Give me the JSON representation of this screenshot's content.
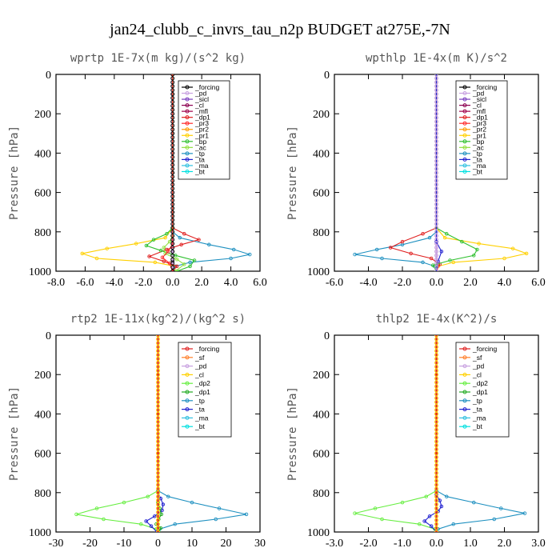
{
  "title": "jan24_clubb_c_invrs_tau_n2p  BUDGET at275E,-7N",
  "colors": {
    "_forcing": "#000000",
    "_pd": "#c8a0e0",
    "_sicl": "#7b3fc0",
    "_cl": "#8b0050",
    "_mfl": "#a0004a",
    "_dp1": "#e02020",
    "_pr3": "#ff2a2a",
    "_pr2": "#ff9a00",
    "_pr1": "#ffd000",
    "_bp": "#30c030",
    "_ac": "#90e040",
    "_tp": "#1e90c0",
    "_ta": "#2020d0",
    "_ma": "#30c0e0",
    "_bt": "#00e0e0",
    "_sf": "#ff7f2a",
    "_dp2": "#22c020",
    "forcing_red": "#e02020",
    "cl_yellow": "#ffd000",
    "dp2_light": "#66ee40",
    "dp1_green": "#22aa22"
  },
  "chart_data": [
    {
      "type": "line",
      "title": "wprtp  1E-7x(m kg)/(s^2 kg)",
      "ylabel": "Pressure [hPa]",
      "xlim": [
        -8,
        6
      ],
      "ylim": [
        0,
        1000
      ],
      "xticks": [
        "-8.0",
        "-6.0",
        "-4.0",
        "-2.0",
        "0.0",
        "2.0",
        "4.0",
        "6.0"
      ],
      "yticks": [
        "0",
        "200",
        "400",
        "600",
        "800",
        "1000"
      ],
      "legend_position": "top-right",
      "legend": [
        "_forcing",
        "_pd",
        "_sicl",
        "_cl",
        "_mfl",
        "_dp1",
        "_pr3",
        "_pr2",
        "_pr1",
        "_bp",
        "_ac",
        "_tp",
        "_ta",
        "_ma",
        "_bt"
      ],
      "series": [
        {
          "name": "_forcing",
          "color": "#000000",
          "x": [
            0,
            0,
            0,
            0,
            0,
            0,
            0,
            0,
            0,
            0,
            0,
            0
          ],
          "y": [
            0,
            100,
            200,
            300,
            400,
            500,
            600,
            700,
            800,
            900,
            950,
            1000
          ]
        },
        {
          "name": "_pd",
          "color": "#c8a0e0",
          "x": [
            0,
            0,
            0,
            0,
            0,
            0
          ],
          "y": [
            0,
            200,
            400,
            600,
            800,
            1000
          ]
        },
        {
          "name": "_pr1",
          "color": "#ffd000",
          "x": [
            0,
            0,
            -0.5,
            -2.5,
            -4.5,
            -6.2,
            -5.2,
            -1.2,
            0.2,
            0
          ],
          "y": [
            0,
            780,
            830,
            860,
            885,
            910,
            935,
            955,
            975,
            1000
          ]
        },
        {
          "name": "_tp",
          "color": "#1e90c0",
          "x": [
            0,
            0,
            0.5,
            2.5,
            4.2,
            5.3,
            4,
            1.2,
            0.2,
            0
          ],
          "y": [
            0,
            800,
            830,
            865,
            890,
            915,
            935,
            955,
            975,
            1000
          ]
        },
        {
          "name": "_dp1",
          "color": "#e02020",
          "x": [
            0,
            0,
            0.8,
            1.8,
            0.6,
            -0.4,
            -1.6,
            -0.6,
            0.3,
            0
          ],
          "y": [
            0,
            780,
            810,
            840,
            865,
            890,
            925,
            950,
            975,
            1000
          ]
        },
        {
          "name": "_bp",
          "color": "#30c030",
          "x": [
            0,
            0,
            -0.4,
            -1.3,
            -1.8,
            -0.8,
            0.2,
            1.5,
            1.2,
            0.3
          ],
          "y": [
            0,
            780,
            810,
            840,
            870,
            895,
            920,
            945,
            975,
            1000
          ]
        },
        {
          "name": "_ac",
          "color": "#90e040",
          "x": [
            0,
            0,
            -0.2,
            -0.6,
            -0.5,
            0.3,
            0.8,
            0.2
          ],
          "y": [
            0,
            820,
            850,
            880,
            910,
            940,
            965,
            1000
          ]
        },
        {
          "name": "_pr3",
          "color": "#ff2a2a",
          "x": [
            0,
            0,
            -0.3,
            -0.7,
            -0.2,
            0
          ],
          "y": [
            0,
            860,
            900,
            930,
            960,
            1000
          ]
        }
      ]
    },
    {
      "type": "line",
      "title": "wpthlp  1E-4x(m K)/s^2",
      "ylabel": "Pressure [hPa]",
      "xlim": [
        -6,
        6
      ],
      "ylim": [
        0,
        1000
      ],
      "xticks": [
        "-6.0",
        "-4.0",
        "-2.0",
        "0.0",
        "2.0",
        "4.0",
        "6.0"
      ],
      "yticks": [
        "0",
        "200",
        "400",
        "600",
        "800",
        "1000"
      ],
      "legend_position": "top-right",
      "legend": [
        "_forcing",
        "_pd",
        "_sicl",
        "_cl",
        "_mfl",
        "_dp1",
        "_pr3",
        "_pr2",
        "_pr1",
        "_bp",
        "_ac",
        "_tp",
        "_ta",
        "_ma",
        "_bt"
      ],
      "series": [
        {
          "name": "_forcing",
          "color": "#c8a0e0",
          "x": [
            0,
            0,
            0,
            0,
            0,
            0
          ],
          "y": [
            0,
            200,
            400,
            600,
            800,
            1000
          ]
        },
        {
          "name": "_pr1",
          "color": "#ffd000",
          "x": [
            0,
            0,
            0.5,
            2.5,
            4.5,
            5.3,
            4,
            1,
            0.1,
            0
          ],
          "y": [
            0,
            780,
            830,
            860,
            885,
            910,
            935,
            955,
            975,
            1000
          ]
        },
        {
          "name": "_tp",
          "color": "#1e90c0",
          "x": [
            0,
            0,
            -0.4,
            -2,
            -3.5,
            -4.8,
            -3.2,
            -0.8,
            -0.1,
            0
          ],
          "y": [
            0,
            800,
            830,
            865,
            890,
            915,
            935,
            955,
            975,
            1000
          ]
        },
        {
          "name": "_dp1",
          "color": "#e02020",
          "x": [
            0,
            0,
            -0.8,
            -2,
            -2.7,
            -1.5,
            -0.3,
            0.2,
            0
          ],
          "y": [
            0,
            780,
            810,
            850,
            880,
            910,
            935,
            965,
            1000
          ]
        },
        {
          "name": "_bp",
          "color": "#30c030",
          "x": [
            0,
            0,
            0.6,
            1.5,
            2.4,
            2.2,
            0.8,
            -0.2,
            0
          ],
          "y": [
            0,
            780,
            810,
            850,
            890,
            920,
            945,
            970,
            1000
          ]
        },
        {
          "name": "_ta",
          "color": "#2020d0",
          "x": [
            0,
            0,
            0.3,
            0.1,
            0
          ],
          "y": [
            0,
            850,
            900,
            950,
            1000
          ]
        }
      ]
    },
    {
      "type": "line",
      "title": "rtp2  1E-11x(kg^2)/(kg^2 s)",
      "ylabel": "Pressure [hPa]",
      "xlim": [
        -30,
        30
      ],
      "ylim": [
        0,
        1000
      ],
      "xticks": [
        "-30",
        "-20",
        "-10",
        "0",
        "10",
        "20",
        "30"
      ],
      "yticks": [
        "0",
        "200",
        "400",
        "600",
        "800",
        "1000"
      ],
      "legend_position": "top-right",
      "legend": [
        "_forcing",
        "_sf",
        "_pd",
        "_cl",
        "_dp2",
        "_dp1",
        "_tp",
        "_ta",
        "_ma",
        "_bt"
      ],
      "series": [
        {
          "name": "_cl",
          "color": "#ffd000",
          "x": [
            0,
            0,
            0,
            0,
            0,
            0
          ],
          "y": [
            0,
            200,
            400,
            600,
            800,
            1000
          ]
        },
        {
          "name": "_dp2",
          "color": "#66ee40",
          "x": [
            0,
            0,
            -3,
            -10,
            -18,
            -24,
            -16,
            -5,
            -0.5,
            0
          ],
          "y": [
            0,
            790,
            820,
            850,
            880,
            910,
            935,
            960,
            985,
            1000
          ]
        },
        {
          "name": "_tp",
          "color": "#1e90c0",
          "x": [
            0,
            0,
            3,
            10,
            18,
            26,
            17,
            5,
            0.5,
            0
          ],
          "y": [
            0,
            790,
            820,
            850,
            880,
            910,
            935,
            960,
            985,
            1000
          ]
        },
        {
          "name": "_ta",
          "color": "#2020d0",
          "x": [
            0,
            0,
            0.8,
            1.5,
            1.2,
            -1,
            -3.5,
            -2,
            -0.3
          ],
          "y": [
            0,
            800,
            830,
            860,
            890,
            920,
            945,
            970,
            1000
          ]
        },
        {
          "name": "_dp1",
          "color": "#22aa22",
          "x": [
            0,
            0,
            0.5,
            1,
            0.2,
            -0.5,
            0.8,
            0.2
          ],
          "y": [
            0,
            850,
            880,
            910,
            935,
            960,
            980,
            1000
          ]
        },
        {
          "name": "_forcing",
          "color": "#e02020",
          "x": [
            0,
            0,
            0,
            0,
            0,
            0
          ],
          "y": [
            0,
            200,
            400,
            600,
            800,
            1000
          ]
        }
      ]
    },
    {
      "type": "line",
      "title": "thlp2  1E-4x(K^2)/s",
      "ylabel": "Pressure [hPa]",
      "xlim": [
        -3,
        3
      ],
      "ylim": [
        0,
        1000
      ],
      "xticks": [
        "-3.0",
        "-2.0",
        "-1.0",
        "0.0",
        "1.0",
        "2.0",
        "3.0"
      ],
      "yticks": [
        "0",
        "200",
        "400",
        "600",
        "800",
        "1000"
      ],
      "legend_position": "top-right",
      "legend": [
        "_forcing",
        "_sf",
        "_pd",
        "_cl",
        "_dp2",
        "_dp1",
        "_tp",
        "_ta",
        "_ma",
        "_bt"
      ],
      "series": [
        {
          "name": "_cl",
          "color": "#ffd000",
          "x": [
            0,
            0,
            0,
            0,
            0,
            0
          ],
          "y": [
            0,
            200,
            400,
            600,
            800,
            1000
          ]
        },
        {
          "name": "_dp2",
          "color": "#66ee40",
          "x": [
            0,
            0,
            -0.3,
            -1,
            -1.8,
            -2.4,
            -1.6,
            -0.5,
            -0.05,
            0
          ],
          "y": [
            0,
            790,
            820,
            850,
            880,
            905,
            935,
            960,
            985,
            1000
          ]
        },
        {
          "name": "_tp",
          "color": "#1e90c0",
          "x": [
            0,
            0,
            0.3,
            1.1,
            1.9,
            2.6,
            1.7,
            0.5,
            0.05,
            0
          ],
          "y": [
            0,
            790,
            820,
            850,
            880,
            905,
            935,
            960,
            985,
            1000
          ]
        },
        {
          "name": "_ta",
          "color": "#2020d0",
          "x": [
            0,
            0,
            0.1,
            0.15,
            0.05,
            -0.2,
            -0.35,
            -0.15,
            0
          ],
          "y": [
            0,
            810,
            840,
            870,
            895,
            920,
            945,
            970,
            1000
          ]
        },
        {
          "name": "_forcing",
          "color": "#e02020",
          "x": [
            0,
            0,
            0,
            0,
            0,
            0
          ],
          "y": [
            0,
            200,
            400,
            600,
            800,
            1000
          ]
        }
      ]
    }
  ]
}
